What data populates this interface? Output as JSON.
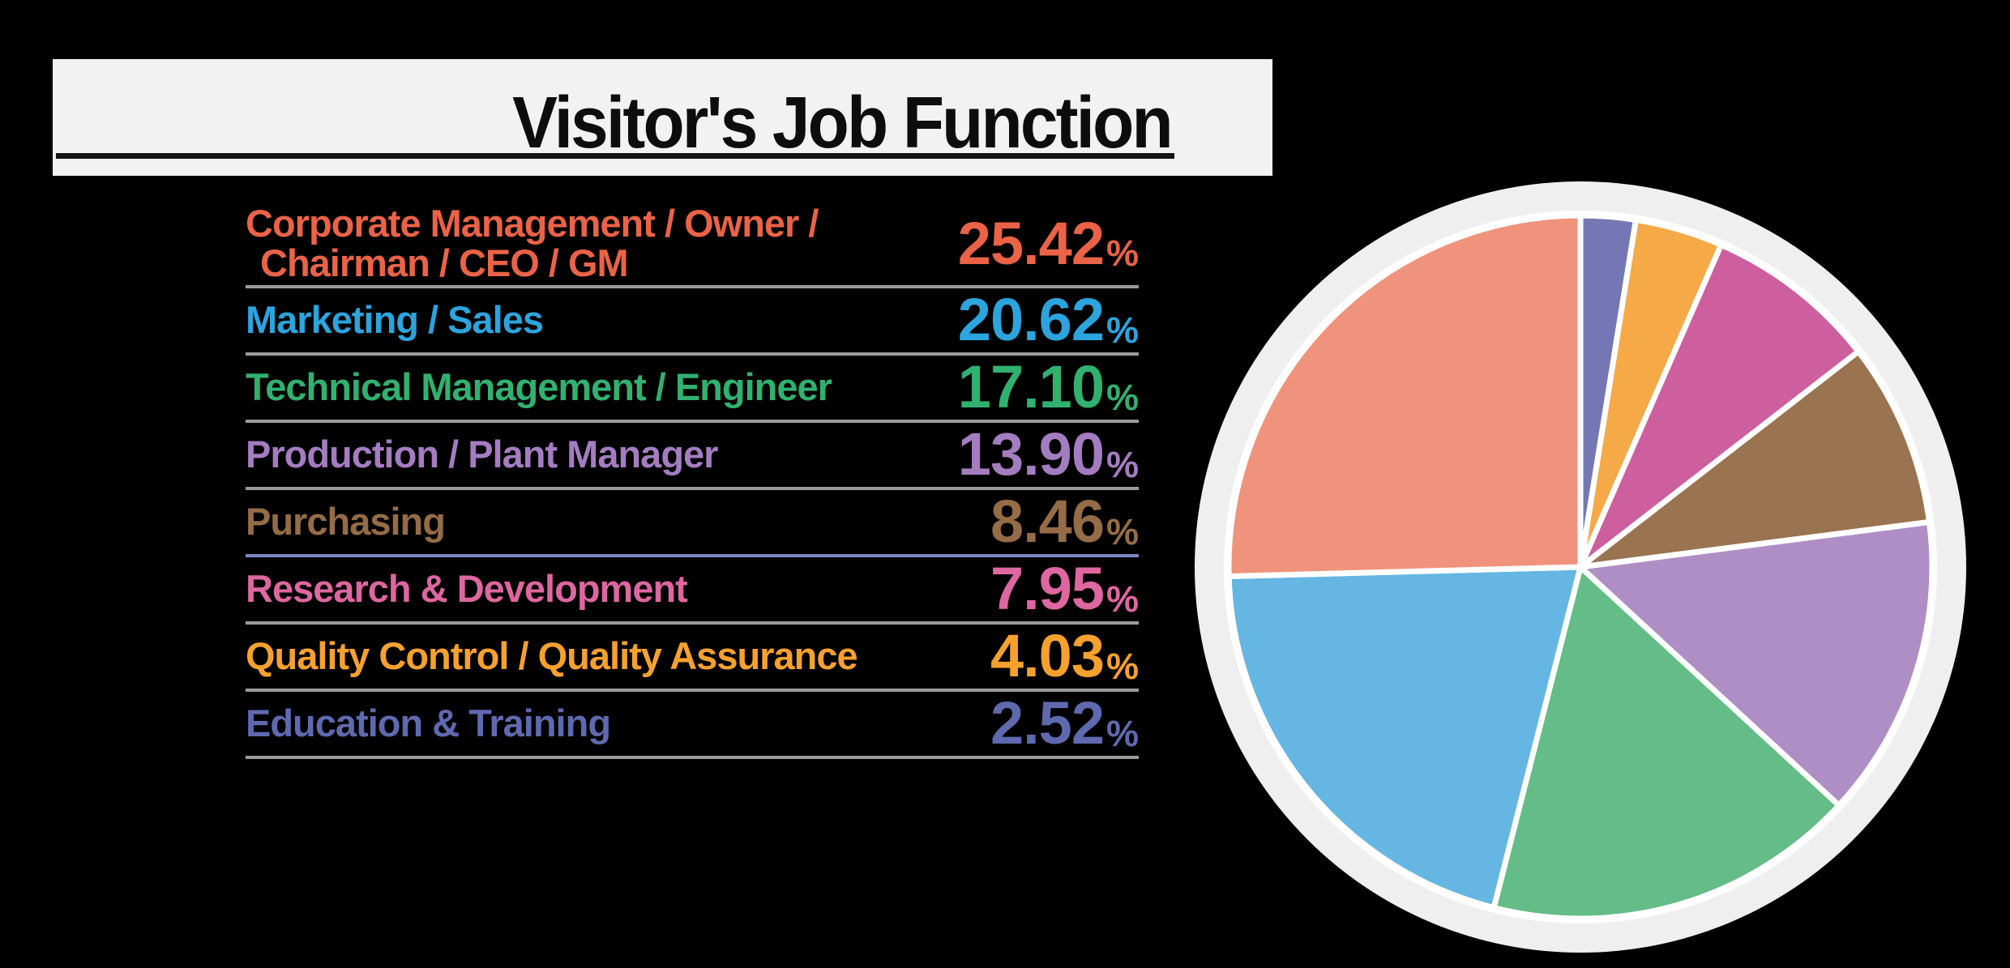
{
  "title": "Visitor's Job Function",
  "background_color": "#000000",
  "banner_color": "#F2F2F2",
  "legend": {
    "rows": [
      {
        "label_lines": [
          "Corporate Management / Owner /",
          "Chairman / CEO / GM"
        ],
        "value": "25.42",
        "unit": "%",
        "color": "#EA6347",
        "divider_color": "#9B9B9B",
        "slice_color": "#F0937C"
      },
      {
        "label": "Marketing / Sales",
        "value": "20.62",
        "unit": "%",
        "color": "#2CA4DD",
        "divider_color": "#9B9B9B",
        "slice_color": "#65B6E3"
      },
      {
        "label": "Technical Management / Engineer",
        "value": "17.10",
        "unit": "%",
        "color": "#30B170",
        "divider_color": "#9B9B9B",
        "slice_color": "#64BC87"
      },
      {
        "label": "Production / Plant Manager",
        "value": "13.90",
        "unit": "%",
        "color": "#A47CC0",
        "divider_color": "#9B9B9B",
        "slice_color": "#AF8EC5"
      },
      {
        "label": "Purchasing",
        "value": "8.46",
        "unit": "%",
        "color": "#956C46",
        "divider_color": "#7B86C2",
        "slice_color": "#9A7350"
      },
      {
        "label": "Research & Development",
        "value": "7.95",
        "unit": "%",
        "color": "#DE66A1",
        "divider_color": "#9B9B9B",
        "slice_color": "#CE5F9E"
      },
      {
        "label": "Quality Control / Quality Assurance",
        "value": "4.03",
        "unit": "%",
        "color": "#F6A12E",
        "divider_color": "#9B9B9B",
        "slice_color": "#F5A947"
      },
      {
        "label": "Education & Training",
        "value": "2.52",
        "unit": "%",
        "color": "#5F69AE",
        "divider_color": "#9B9B9B",
        "slice_color": "#7577B5"
      }
    ]
  },
  "chart_data": {
    "type": "pie",
    "title": "Visitor's Job Function",
    "categories": [
      "Corporate Management / Owner / Chairman / CEO / GM",
      "Marketing / Sales",
      "Technical Management / Engineer",
      "Production / Plant Manager",
      "Purchasing",
      "Research & Development",
      "Quality Control / Quality Assurance",
      "Education & Training"
    ],
    "values": [
      25.42,
      20.62,
      17.1,
      13.9,
      8.46,
      7.95,
      4.03,
      2.52
    ],
    "colors": [
      "#F0937C",
      "#65B6E3",
      "#64BC87",
      "#AF8EC5",
      "#9A7350",
      "#CE5F9E",
      "#F5A947",
      "#7577B5"
    ],
    "start_angle_deg": 0,
    "direction": "clockwise",
    "draw_order": "smallest slice first at 12 o'clock, ascending clockwise",
    "slice_border_color": "#FFFFFF",
    "ring_outer_color": "#EFEFEF",
    "ring_inner_color": "#FFFFFF",
    "legend_position": "left",
    "radius_px": 434
  }
}
